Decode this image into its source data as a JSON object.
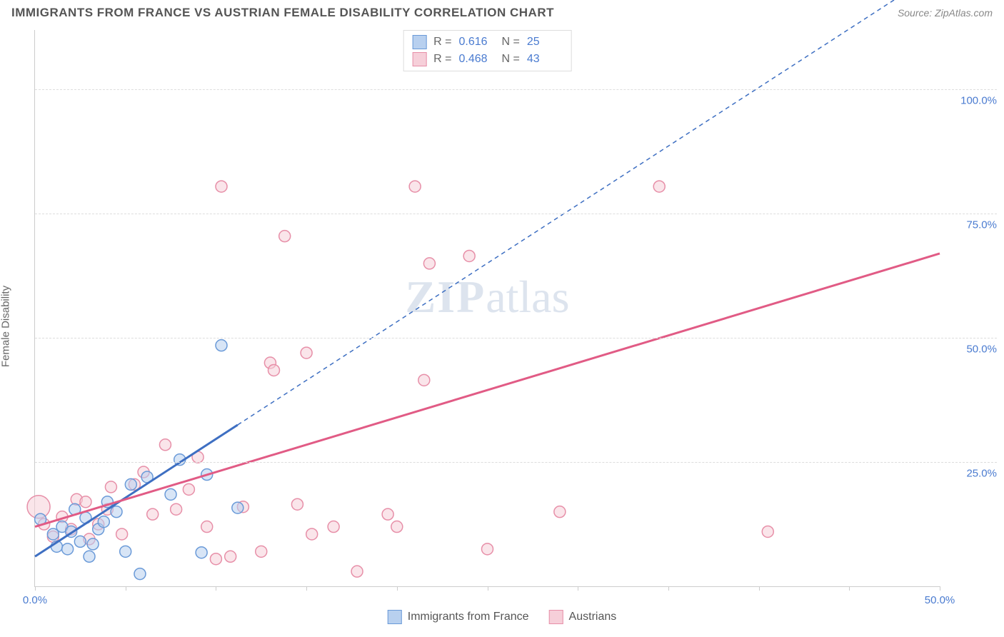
{
  "header": {
    "title": "IMMIGRANTS FROM FRANCE VS AUSTRIAN FEMALE DISABILITY CORRELATION CHART",
    "source_label": "Source: ",
    "source_name": "ZipAtlas.com"
  },
  "watermark": {
    "part1": "ZIP",
    "part2": "atlas"
  },
  "chart": {
    "type": "scatter",
    "ylabel": "Female Disability",
    "xlim": [
      0,
      50
    ],
    "ylim": [
      0,
      112
    ],
    "xtick_positions": [
      0,
      5,
      10,
      15,
      20,
      25,
      30,
      35,
      40,
      45,
      50
    ],
    "xtick_labels": {
      "0": "0.0%",
      "50": "50.0%"
    },
    "ygrid_positions": [
      25,
      50,
      75,
      100
    ],
    "ytick_labels": {
      "25": "25.0%",
      "50": "50.0%",
      "75": "75.0%",
      "100": "100.0%"
    },
    "background_color": "#ffffff",
    "grid_color": "#dddddd",
    "axis_color": "#cccccc",
    "tick_label_color": "#4a7bd0",
    "axis_label_color": "#666666"
  },
  "series": {
    "france": {
      "label": "Immigrants from France",
      "R": "0.616",
      "N": "25",
      "fill": "#b8d0ef",
      "stroke": "#6a9ad8",
      "line_color": "#3e6fc2",
      "marker_radius": 8,
      "points": [
        [
          0.3,
          13.5
        ],
        [
          1.0,
          10.5
        ],
        [
          1.2,
          8.0
        ],
        [
          1.5,
          12.0
        ],
        [
          1.8,
          7.5
        ],
        [
          2.0,
          11.0
        ],
        [
          2.2,
          15.5
        ],
        [
          2.5,
          9.0
        ],
        [
          2.8,
          13.8
        ],
        [
          3.0,
          6.0
        ],
        [
          3.2,
          8.5
        ],
        [
          3.5,
          11.5
        ],
        [
          3.8,
          13.0
        ],
        [
          4.0,
          17.0
        ],
        [
          4.5,
          15.0
        ],
        [
          5.0,
          7.0
        ],
        [
          5.3,
          20.5
        ],
        [
          5.8,
          2.5
        ],
        [
          6.2,
          22.0
        ],
        [
          7.5,
          18.5
        ],
        [
          8.0,
          25.5
        ],
        [
          9.2,
          6.8
        ],
        [
          9.5,
          22.5
        ],
        [
          10.3,
          48.5
        ],
        [
          11.2,
          15.8
        ]
      ],
      "trendline": {
        "x1": 0,
        "y1": 6.0,
        "x2": 11.2,
        "y2": 32.5,
        "extrap_x2": 50,
        "extrap_y2": 124
      }
    },
    "austrians": {
      "label": "Austrians",
      "R": "0.468",
      "N": "43",
      "fill": "#f6cfd9",
      "stroke": "#e78fa8",
      "line_color": "#e15b85",
      "marker_radius": 8,
      "points": [
        [
          0.2,
          16.0,
          16
        ],
        [
          0.5,
          12.5,
          8
        ],
        [
          1.0,
          10.0,
          8
        ],
        [
          1.5,
          14.0,
          8
        ],
        [
          2.0,
          11.5,
          8
        ],
        [
          2.3,
          17.5,
          8
        ],
        [
          2.8,
          17.0,
          8
        ],
        [
          3.0,
          9.5,
          8
        ],
        [
          3.5,
          12.5,
          8
        ],
        [
          4.0,
          15.5,
          8
        ],
        [
          4.2,
          20.0,
          8
        ],
        [
          4.8,
          10.5,
          8
        ],
        [
          5.5,
          20.5,
          8
        ],
        [
          6.0,
          23.0,
          8
        ],
        [
          6.5,
          14.5,
          8
        ],
        [
          7.2,
          28.5,
          8
        ],
        [
          7.8,
          15.5,
          8
        ],
        [
          8.5,
          19.5,
          8
        ],
        [
          9.0,
          26.0,
          8
        ],
        [
          9.5,
          12.0,
          8
        ],
        [
          10.0,
          5.5,
          8
        ],
        [
          10.3,
          80.5,
          8
        ],
        [
          10.8,
          6.0,
          8
        ],
        [
          11.5,
          16.0,
          8
        ],
        [
          12.5,
          7.0,
          8
        ],
        [
          13.0,
          45.0,
          8
        ],
        [
          13.2,
          43.5,
          8
        ],
        [
          13.8,
          70.5,
          8
        ],
        [
          14.5,
          16.5,
          8
        ],
        [
          15.0,
          47.0,
          8
        ],
        [
          15.3,
          10.5,
          8
        ],
        [
          16.5,
          12.0,
          8
        ],
        [
          17.8,
          3.0,
          8
        ],
        [
          19.5,
          14.5,
          8
        ],
        [
          20.0,
          12.0,
          8
        ],
        [
          21.0,
          80.5,
          8
        ],
        [
          21.5,
          41.5,
          8
        ],
        [
          21.8,
          65.0,
          8
        ],
        [
          24.0,
          66.5,
          8
        ],
        [
          25.0,
          7.5,
          8
        ],
        [
          29.0,
          15.0,
          8
        ],
        [
          34.5,
          80.5,
          8
        ],
        [
          40.5,
          11.0,
          8
        ]
      ],
      "trendline": {
        "x1": 0,
        "y1": 12.0,
        "x2": 50,
        "y2": 67.0
      }
    }
  },
  "legend_top": {
    "r_label": "R =",
    "n_label": "N ="
  }
}
